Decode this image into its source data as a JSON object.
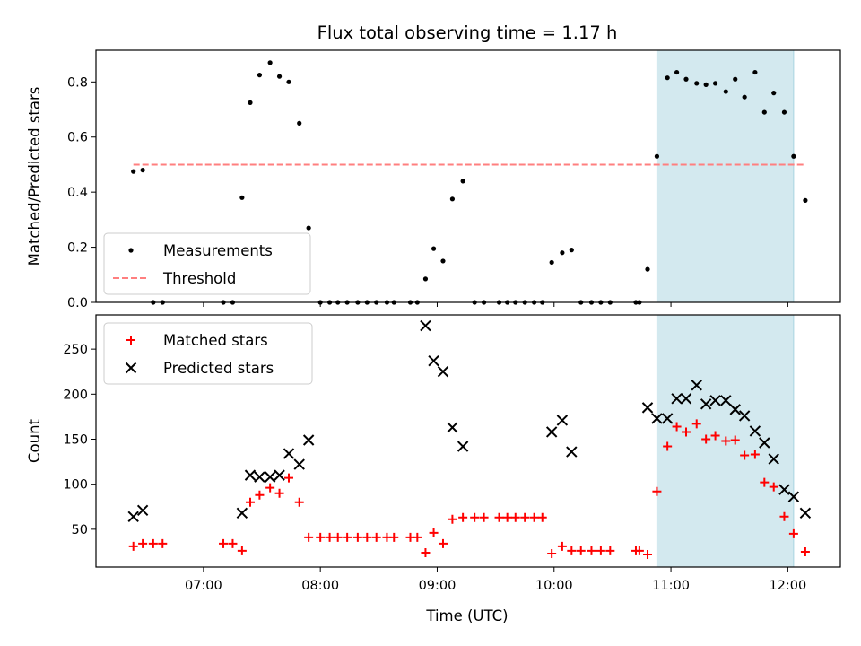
{
  "figure": {
    "title": "Flux total observing time = 1.17 h",
    "xlabel": "Time (UTC)",
    "xticks": [
      {
        "h": 7,
        "label": "07:00"
      },
      {
        "h": 8,
        "label": "08:00"
      },
      {
        "h": 9,
        "label": "09:00"
      },
      {
        "h": 10,
        "label": "10:00"
      },
      {
        "h": 11,
        "label": "11:00"
      },
      {
        "h": 12,
        "label": "12:00"
      }
    ],
    "xlim": [
      6.08,
      12.45
    ],
    "highlight_span": {
      "start": 10.88,
      "end": 12.05,
      "color": "#d3e9ef"
    }
  },
  "chart_data": [
    {
      "type": "scatter",
      "ylabel": "Matched/Predicted stars",
      "ylim": [
        0,
        0.915
      ],
      "yticks": [
        {
          "v": 0.0,
          "label": "0.0"
        },
        {
          "v": 0.2,
          "label": "0.2"
        },
        {
          "v": 0.4,
          "label": "0.4"
        },
        {
          "v": 0.6,
          "label": "0.6"
        },
        {
          "v": 0.8,
          "label": "0.8"
        }
      ],
      "legend_position": "lower-left",
      "threshold": {
        "name": "Threshold",
        "value": 0.5,
        "x_start": 6.4,
        "x_end": 12.15,
        "color": "#ff7f7f"
      },
      "series": [
        {
          "name": "Measurements",
          "color": "#000000",
          "marker": "dot",
          "points": [
            [
              6.4,
              0.475
            ],
            [
              6.48,
              0.48
            ],
            [
              6.57,
              0
            ],
            [
              6.65,
              0
            ],
            [
              7.17,
              0
            ],
            [
              7.25,
              0
            ],
            [
              7.33,
              0.38
            ],
            [
              7.4,
              0.725
            ],
            [
              7.48,
              0.825
            ],
            [
              7.57,
              0.87
            ],
            [
              7.65,
              0.82
            ],
            [
              7.73,
              0.8
            ],
            [
              7.82,
              0.65
            ],
            [
              7.9,
              0.27
            ],
            [
              8.0,
              0
            ],
            [
              8.08,
              0
            ],
            [
              8.15,
              0
            ],
            [
              8.23,
              0
            ],
            [
              8.32,
              0
            ],
            [
              8.4,
              0
            ],
            [
              8.48,
              0
            ],
            [
              8.57,
              0
            ],
            [
              8.63,
              0
            ],
            [
              8.77,
              0
            ],
            [
              8.83,
              0
            ],
            [
              8.9,
              0.085
            ],
            [
              8.97,
              0.195
            ],
            [
              9.05,
              0.15
            ],
            [
              9.13,
              0.375
            ],
            [
              9.22,
              0.44
            ],
            [
              9.32,
              0
            ],
            [
              9.4,
              0
            ],
            [
              9.53,
              0
            ],
            [
              9.6,
              0
            ],
            [
              9.67,
              0
            ],
            [
              9.75,
              0
            ],
            [
              9.83,
              0
            ],
            [
              9.9,
              0
            ],
            [
              9.98,
              0.145
            ],
            [
              10.07,
              0.18
            ],
            [
              10.15,
              0.19
            ],
            [
              10.23,
              0
            ],
            [
              10.32,
              0
            ],
            [
              10.4,
              0
            ],
            [
              10.48,
              0
            ],
            [
              10.7,
              0
            ],
            [
              10.73,
              0
            ],
            [
              10.8,
              0.12
            ],
            [
              10.88,
              0.53
            ],
            [
              10.97,
              0.815
            ],
            [
              11.05,
              0.835
            ],
            [
              11.13,
              0.81
            ],
            [
              11.22,
              0.795
            ],
            [
              11.3,
              0.79
            ],
            [
              11.38,
              0.795
            ],
            [
              11.47,
              0.765
            ],
            [
              11.55,
              0.81
            ],
            [
              11.63,
              0.745
            ],
            [
              11.72,
              0.835
            ],
            [
              11.8,
              0.69
            ],
            [
              11.88,
              0.76
            ],
            [
              11.97,
              0.69
            ],
            [
              12.05,
              0.53
            ],
            [
              12.15,
              0.37
            ]
          ]
        }
      ]
    },
    {
      "type": "scatter",
      "ylabel": "Count",
      "ylim": [
        8,
        288
      ],
      "yticks": [
        {
          "v": 50,
          "label": "50"
        },
        {
          "v": 100,
          "label": "100"
        },
        {
          "v": 150,
          "label": "150"
        },
        {
          "v": 200,
          "label": "200"
        },
        {
          "v": 250,
          "label": "250"
        }
      ],
      "legend_position": "upper-left",
      "series": [
        {
          "name": "Matched stars",
          "color": "#ff0000",
          "marker": "plus",
          "points": [
            [
              6.4,
              31
            ],
            [
              6.48,
              34
            ],
            [
              6.57,
              34
            ],
            [
              6.65,
              34
            ],
            [
              7.17,
              34
            ],
            [
              7.25,
              34
            ],
            [
              7.33,
              26
            ],
            [
              7.4,
              80
            ],
            [
              7.48,
              88
            ],
            [
              7.57,
              96
            ],
            [
              7.65,
              90
            ],
            [
              7.73,
              107
            ],
            [
              7.82,
              80
            ],
            [
              7.9,
              41
            ],
            [
              8.0,
              41
            ],
            [
              8.08,
              41
            ],
            [
              8.15,
              41
            ],
            [
              8.23,
              41
            ],
            [
              8.32,
              41
            ],
            [
              8.4,
              41
            ],
            [
              8.48,
              41
            ],
            [
              8.57,
              41
            ],
            [
              8.63,
              41
            ],
            [
              8.77,
              41
            ],
            [
              8.83,
              41
            ],
            [
              8.9,
              24
            ],
            [
              8.97,
              46
            ],
            [
              9.05,
              34
            ],
            [
              9.13,
              61
            ],
            [
              9.22,
              63
            ],
            [
              9.32,
              63
            ],
            [
              9.4,
              63
            ],
            [
              9.53,
              63
            ],
            [
              9.6,
              63
            ],
            [
              9.67,
              63
            ],
            [
              9.75,
              63
            ],
            [
              9.83,
              63
            ],
            [
              9.9,
              63
            ],
            [
              9.98,
              23
            ],
            [
              10.07,
              31
            ],
            [
              10.15,
              26
            ],
            [
              10.23,
              26
            ],
            [
              10.32,
              26
            ],
            [
              10.4,
              26
            ],
            [
              10.48,
              26
            ],
            [
              10.7,
              26
            ],
            [
              10.73,
              26
            ],
            [
              10.8,
              22
            ],
            [
              10.88,
              92
            ],
            [
              10.97,
              142
            ],
            [
              11.05,
              164
            ],
            [
              11.13,
              158
            ],
            [
              11.22,
              167
            ],
            [
              11.3,
              150
            ],
            [
              11.38,
              154
            ],
            [
              11.47,
              148
            ],
            [
              11.55,
              149
            ],
            [
              11.63,
              132
            ],
            [
              11.72,
              133
            ],
            [
              11.8,
              102
            ],
            [
              11.88,
              97
            ],
            [
              11.97,
              64
            ],
            [
              12.05,
              45
            ],
            [
              12.15,
              25
            ]
          ]
        },
        {
          "name": "Predicted stars",
          "color": "#000000",
          "marker": "x",
          "points": [
            [
              6.4,
              64
            ],
            [
              6.48,
              71
            ],
            [
              7.33,
              68
            ],
            [
              7.4,
              110
            ],
            [
              7.48,
              108
            ],
            [
              7.57,
              108
            ],
            [
              7.65,
              110
            ],
            [
              7.73,
              134
            ],
            [
              7.82,
              122
            ],
            [
              7.9,
              149
            ],
            [
              8.9,
              276
            ],
            [
              8.97,
              237
            ],
            [
              9.05,
              225
            ],
            [
              9.13,
              163
            ],
            [
              9.22,
              142
            ],
            [
              9.98,
              158
            ],
            [
              10.07,
              171
            ],
            [
              10.15,
              136
            ],
            [
              10.8,
              185
            ],
            [
              10.88,
              173
            ],
            [
              10.97,
              173
            ],
            [
              11.05,
              195
            ],
            [
              11.13,
              195
            ],
            [
              11.22,
              210
            ],
            [
              11.3,
              189
            ],
            [
              11.38,
              193
            ],
            [
              11.47,
              193
            ],
            [
              11.55,
              183
            ],
            [
              11.63,
              176
            ],
            [
              11.72,
              159
            ],
            [
              11.8,
              146
            ],
            [
              11.88,
              128
            ],
            [
              11.97,
              94
            ],
            [
              12.05,
              86
            ],
            [
              12.15,
              68
            ]
          ]
        }
      ]
    }
  ]
}
